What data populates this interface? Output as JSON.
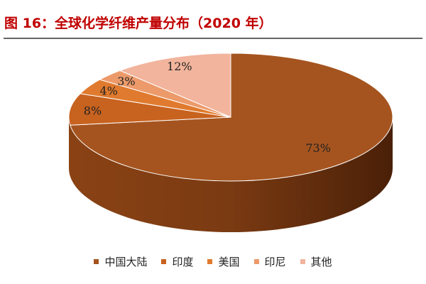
{
  "title": "图 16：全球化学纤维产量分布（2020 年）",
  "chart_data": {
    "type": "pie",
    "style": "3d",
    "title": "",
    "categories": [
      "中国大陆",
      "印度",
      "美国",
      "印尼",
      "其他"
    ],
    "values": [
      73,
      8,
      4,
      3,
      12
    ],
    "labels": [
      "73%",
      "8%",
      "4%",
      "3%",
      "12%"
    ],
    "colors": [
      "#a5541f",
      "#c8621f",
      "#e07a2e",
      "#ec9a6a",
      "#f2b49c"
    ],
    "start_angle": "top, clockwise",
    "legend": "bottom"
  }
}
